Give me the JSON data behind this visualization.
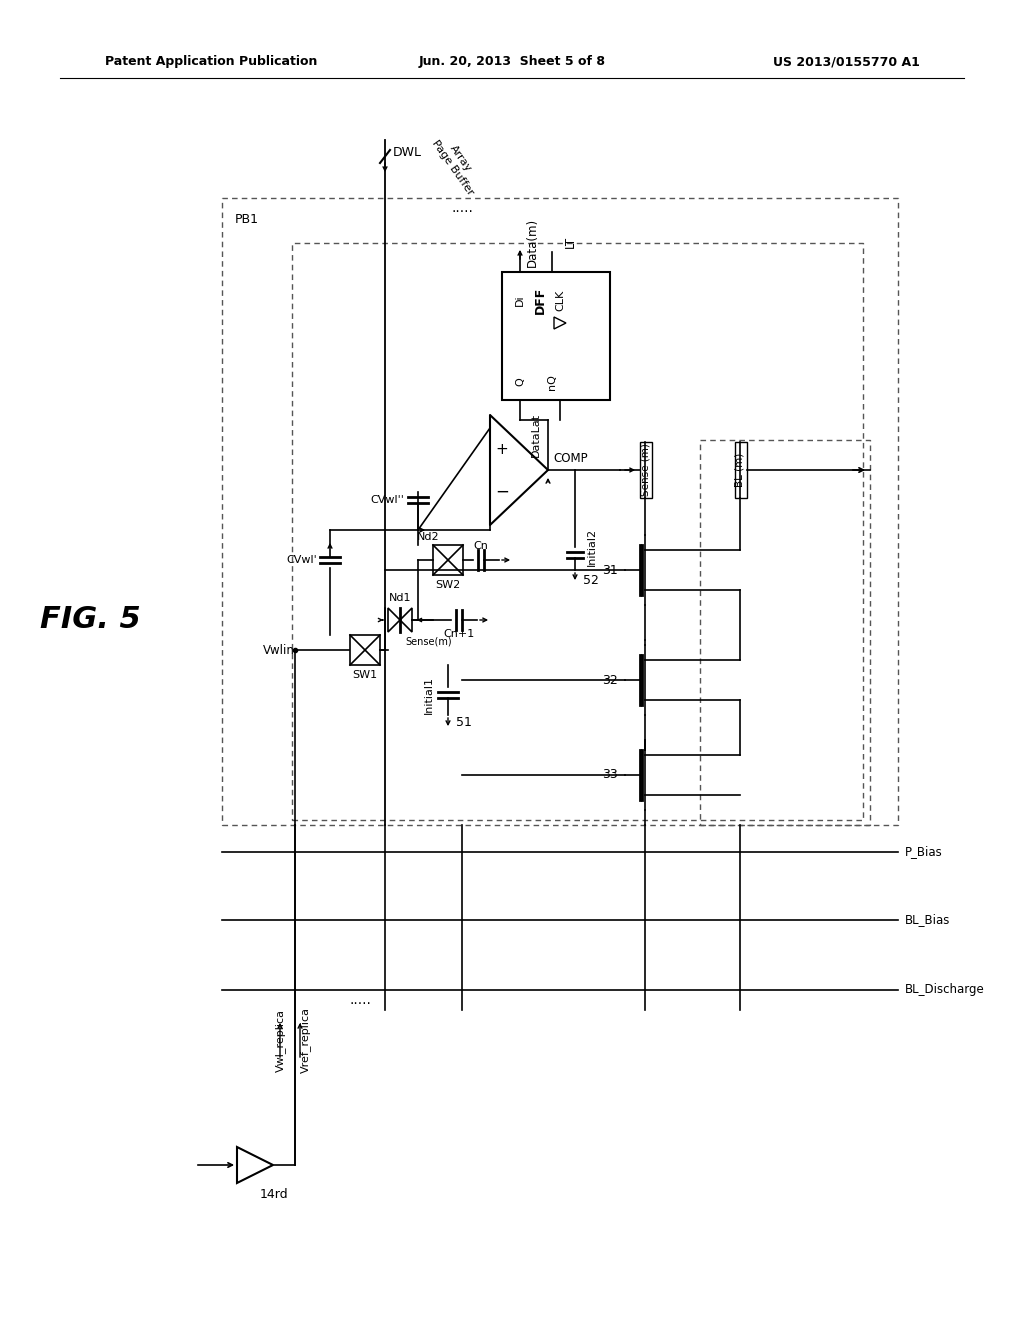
{
  "header_left": "Patent Application Publication",
  "header_center": "Jun. 20, 2013  Sheet 5 of 8",
  "header_right": "US 2013/0155770 A1",
  "fig_label": "FIG. 5",
  "background": "#ffffff",
  "line_color": "#000000"
}
